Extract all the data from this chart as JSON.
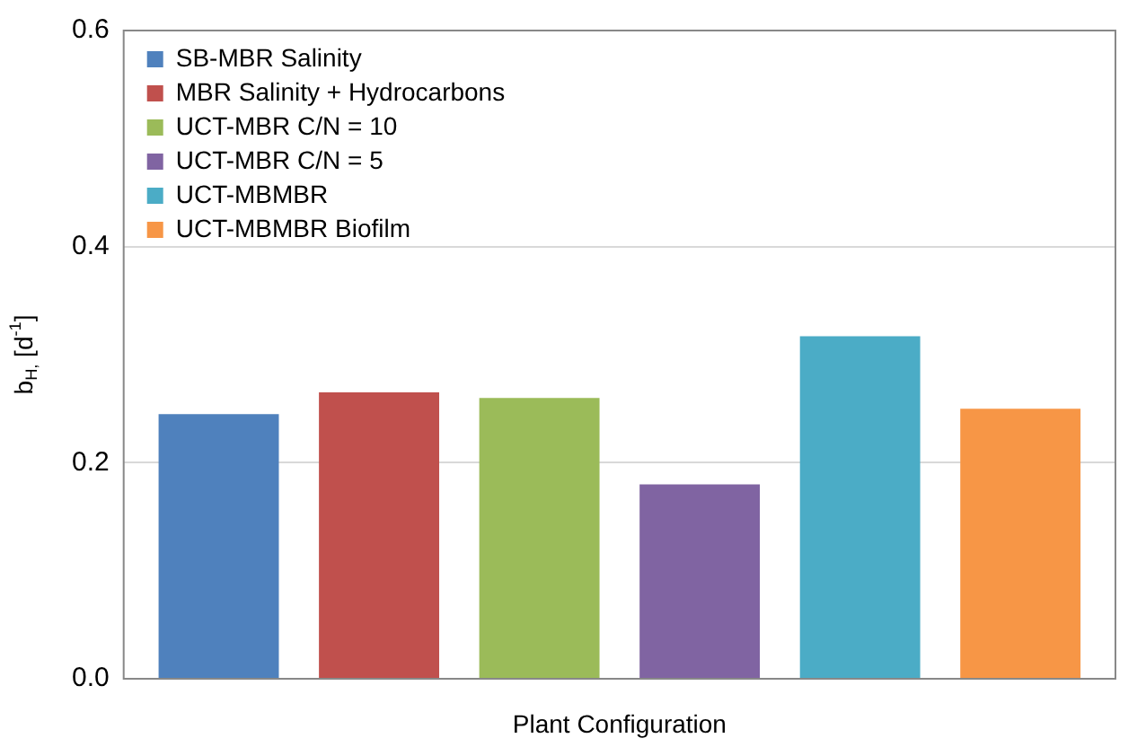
{
  "chart_data": {
    "type": "bar",
    "categories": [
      null
    ],
    "xlabel": "Plant Configuration",
    "ylabel": "b$_{H,}$ [d$^{-1}$]",
    "series": [
      {
        "name": "SB-MBR Salinity",
        "color": "#4f81bd",
        "values": [
          0.245
        ]
      },
      {
        "name": "MBR Salinity + Hydrocarbons",
        "color": "#c0504d",
        "values": [
          0.265
        ]
      },
      {
        "name": "UCT-MBR C/N = 10",
        "color": "#9bbb59",
        "values": [
          0.26
        ]
      },
      {
        "name": "UCT-MBR C/N = 5",
        "color": "#8064a2",
        "values": [
          0.18
        ]
      },
      {
        "name": "UCT-MBMBR",
        "color": "#4bacc6",
        "values": [
          0.317
        ]
      },
      {
        "name": "UCT-MBMBR Biofilm",
        "color": "#f79646",
        "values": [
          0.25
        ]
      }
    ],
    "ylim": [
      0,
      0.6
    ],
    "yticks": [
      {
        "value": 0,
        "label": "0.0"
      },
      {
        "value": 0.2,
        "label": "0.2"
      },
      {
        "value": 0.4,
        "label": "0.4"
      },
      {
        "value": 0.6,
        "label": "0.6"
      }
    ],
    "grid": "y",
    "legend": "top left"
  }
}
